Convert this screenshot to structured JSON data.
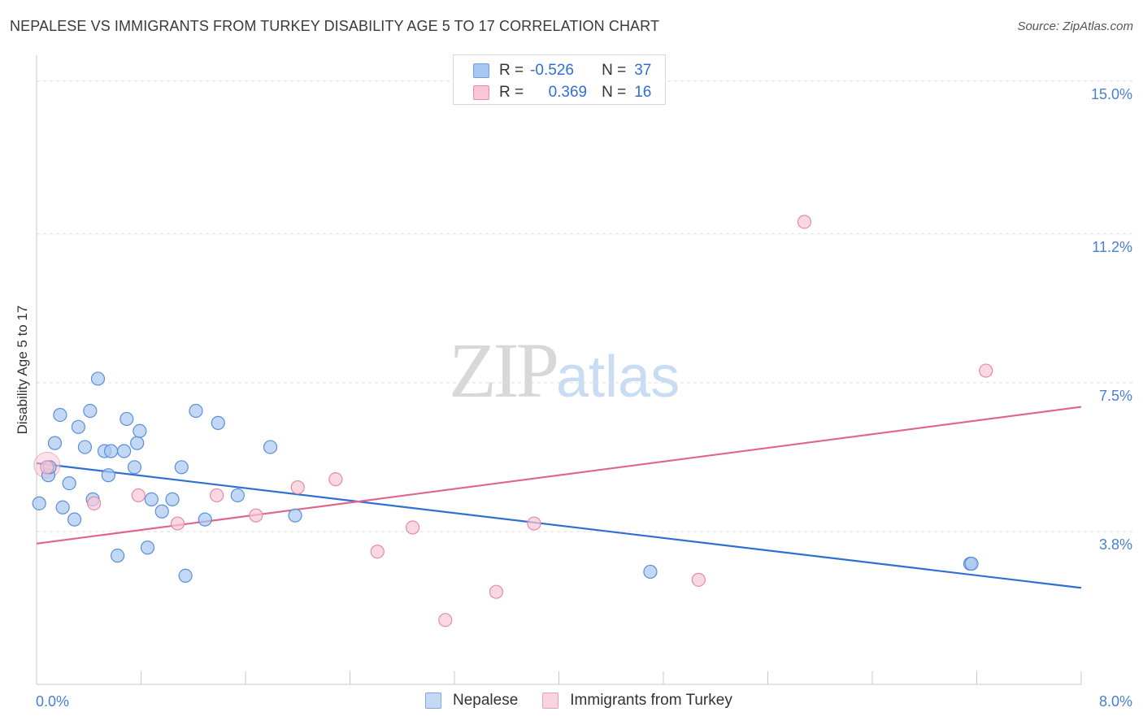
{
  "title": "NEPALESE VS IMMIGRANTS FROM TURKEY DISABILITY AGE 5 TO 17 CORRELATION CHART",
  "source": "Source: ZipAtlas.com",
  "watermark": {
    "zip": "ZIP",
    "atlas": "atlas"
  },
  "legend_stats": [
    {
      "r_label": "R =",
      "r_value": "-0.526",
      "n_label": "N =",
      "n_value": "37",
      "color": "#a9c8f0",
      "border": "#6b9fe3"
    },
    {
      "r_label": "R =",
      "r_value": "0.369",
      "n_label": "N =",
      "n_value": "16",
      "color": "#f8c8d6",
      "border": "#e88aa8"
    }
  ],
  "colors": {
    "blue_fill": "#a9c8f0",
    "blue_stroke": "#5b8fd9",
    "blue_line": "#2f6fd3",
    "pink_fill": "#f8c8d6",
    "pink_stroke": "#e58aa8",
    "pink_line": "#e0648e"
  },
  "chart_data": {
    "type": "scatter",
    "title": "NEPALESE VS IMMIGRANTS FROM TURKEY DISABILITY AGE 5 TO 17 CORRELATION CHART",
    "xlabel": "",
    "ylabel": "Disability Age 5 to 17",
    "xlim": [
      0,
      8.0
    ],
    "ylim": [
      0,
      15.4
    ],
    "x_ticks": [
      "0.0%",
      "8.0%"
    ],
    "y_ticks": [
      {
        "value": 3.8,
        "label": "3.8%"
      },
      {
        "value": 7.5,
        "label": "7.5%"
      },
      {
        "value": 11.2,
        "label": "11.2%"
      },
      {
        "value": 15.0,
        "label": "15.0%"
      }
    ],
    "grid": true,
    "legend": "top-center",
    "series": [
      {
        "name": "Nepalese",
        "points": [
          [
            0.02,
            4.5
          ],
          [
            0.09,
            5.2
          ],
          [
            0.1,
            5.4
          ],
          [
            0.14,
            6.0
          ],
          [
            0.18,
            6.7
          ],
          [
            0.2,
            4.4
          ],
          [
            0.25,
            5.0
          ],
          [
            0.29,
            4.1
          ],
          [
            0.32,
            6.4
          ],
          [
            0.37,
            5.9
          ],
          [
            0.41,
            6.8
          ],
          [
            0.43,
            4.6
          ],
          [
            0.47,
            7.6
          ],
          [
            0.52,
            5.8
          ],
          [
            0.55,
            5.2
          ],
          [
            0.57,
            5.8
          ],
          [
            0.62,
            3.2
          ],
          [
            0.67,
            5.8
          ],
          [
            0.69,
            6.6
          ],
          [
            0.75,
            5.4
          ],
          [
            0.77,
            6.0
          ],
          [
            0.79,
            6.3
          ],
          [
            0.85,
            3.4
          ],
          [
            0.88,
            4.6
          ],
          [
            0.96,
            4.3
          ],
          [
            1.04,
            4.6
          ],
          [
            1.11,
            5.4
          ],
          [
            1.14,
            2.7
          ],
          [
            1.22,
            6.8
          ],
          [
            1.29,
            4.1
          ],
          [
            1.39,
            6.5
          ],
          [
            1.54,
            4.7
          ],
          [
            1.79,
            5.9
          ],
          [
            1.98,
            4.2
          ],
          [
            4.7,
            2.8
          ],
          [
            7.15,
            3.0
          ],
          [
            7.16,
            3.0
          ]
        ]
      },
      {
        "name": "Immigrants from Turkey",
        "points": [
          [
            0.08,
            5.4
          ],
          [
            0.44,
            4.5
          ],
          [
            0.78,
            4.7
          ],
          [
            1.08,
            4.0
          ],
          [
            1.38,
            4.7
          ],
          [
            1.68,
            4.2
          ],
          [
            2.0,
            4.9
          ],
          [
            2.29,
            5.1
          ],
          [
            2.61,
            3.3
          ],
          [
            2.88,
            3.9
          ],
          [
            3.13,
            1.6
          ],
          [
            3.52,
            2.3
          ],
          [
            3.81,
            4.0
          ],
          [
            5.07,
            2.6
          ],
          [
            5.88,
            11.5
          ],
          [
            7.27,
            7.8
          ]
        ]
      }
    ],
    "trend_lines": [
      {
        "series": "Nepalese",
        "x": [
          0.0,
          8.0
        ],
        "y": [
          5.5,
          2.4
        ]
      },
      {
        "series": "Immigrants from Turkey",
        "x": [
          0.0,
          8.0
        ],
        "y": [
          3.5,
          6.9
        ]
      }
    ]
  }
}
